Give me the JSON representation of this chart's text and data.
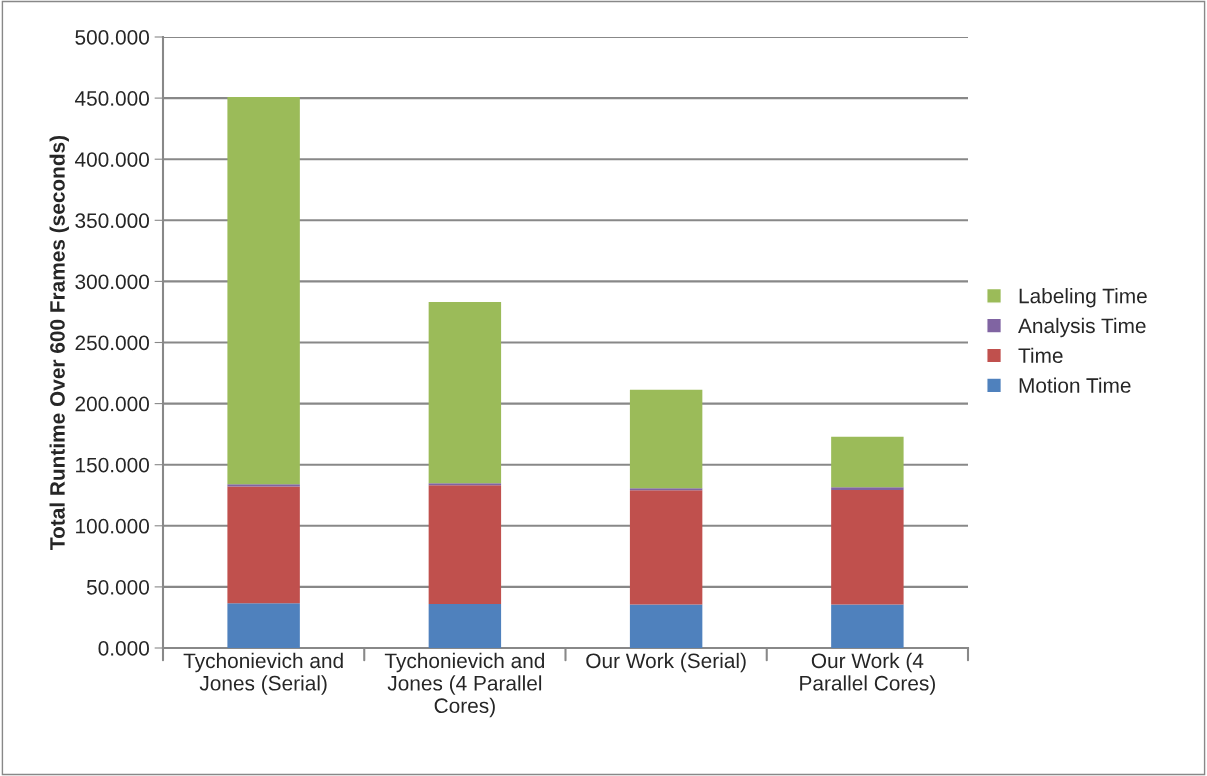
{
  "chart_data": {
    "type": "bar",
    "stacked": true,
    "ylabel": "Total Runtime Over 600 Frames (seconds)",
    "categories": [
      "Tychonievich and\nJones (Serial)",
      "Tychonievich and\nJones (4 Parallel\nCores)",
      "Our Work (Serial)",
      "Our Work (4\nParallel Cores)"
    ],
    "series": [
      {
        "name": "Motion Time",
        "color": "#4f81bd",
        "values": [
          36.7,
          36.1,
          35.6,
          35.6
        ]
      },
      {
        "name": "Time",
        "color": "#c0504d",
        "values": [
          95.5,
          97.0,
          93.5,
          93.7
        ]
      },
      {
        "name": "Analysis Time",
        "color": "#8064a2",
        "values": [
          1.8,
          1.8,
          1.6,
          2.2
        ]
      },
      {
        "name": "Labeling Time",
        "color": "#9bbb59",
        "values": [
          317.0,
          148.2,
          80.7,
          41.3
        ]
      }
    ],
    "ylim": [
      0,
      500
    ],
    "yticks": [
      {
        "value": 0,
        "label": "0.000"
      },
      {
        "value": 50,
        "label": "50.000"
      },
      {
        "value": 100,
        "label": "100.000"
      },
      {
        "value": 150,
        "label": "150.000"
      },
      {
        "value": 200,
        "label": "200.000"
      },
      {
        "value": 250,
        "label": "250.000"
      },
      {
        "value": 300,
        "label": "300.000"
      },
      {
        "value": 350,
        "label": "350.000"
      },
      {
        "value": 400,
        "label": "400.000"
      },
      {
        "value": 450,
        "label": "450.000"
      },
      {
        "value": 500,
        "label": "500.000"
      }
    ],
    "grid": "y",
    "legend": "right"
  }
}
